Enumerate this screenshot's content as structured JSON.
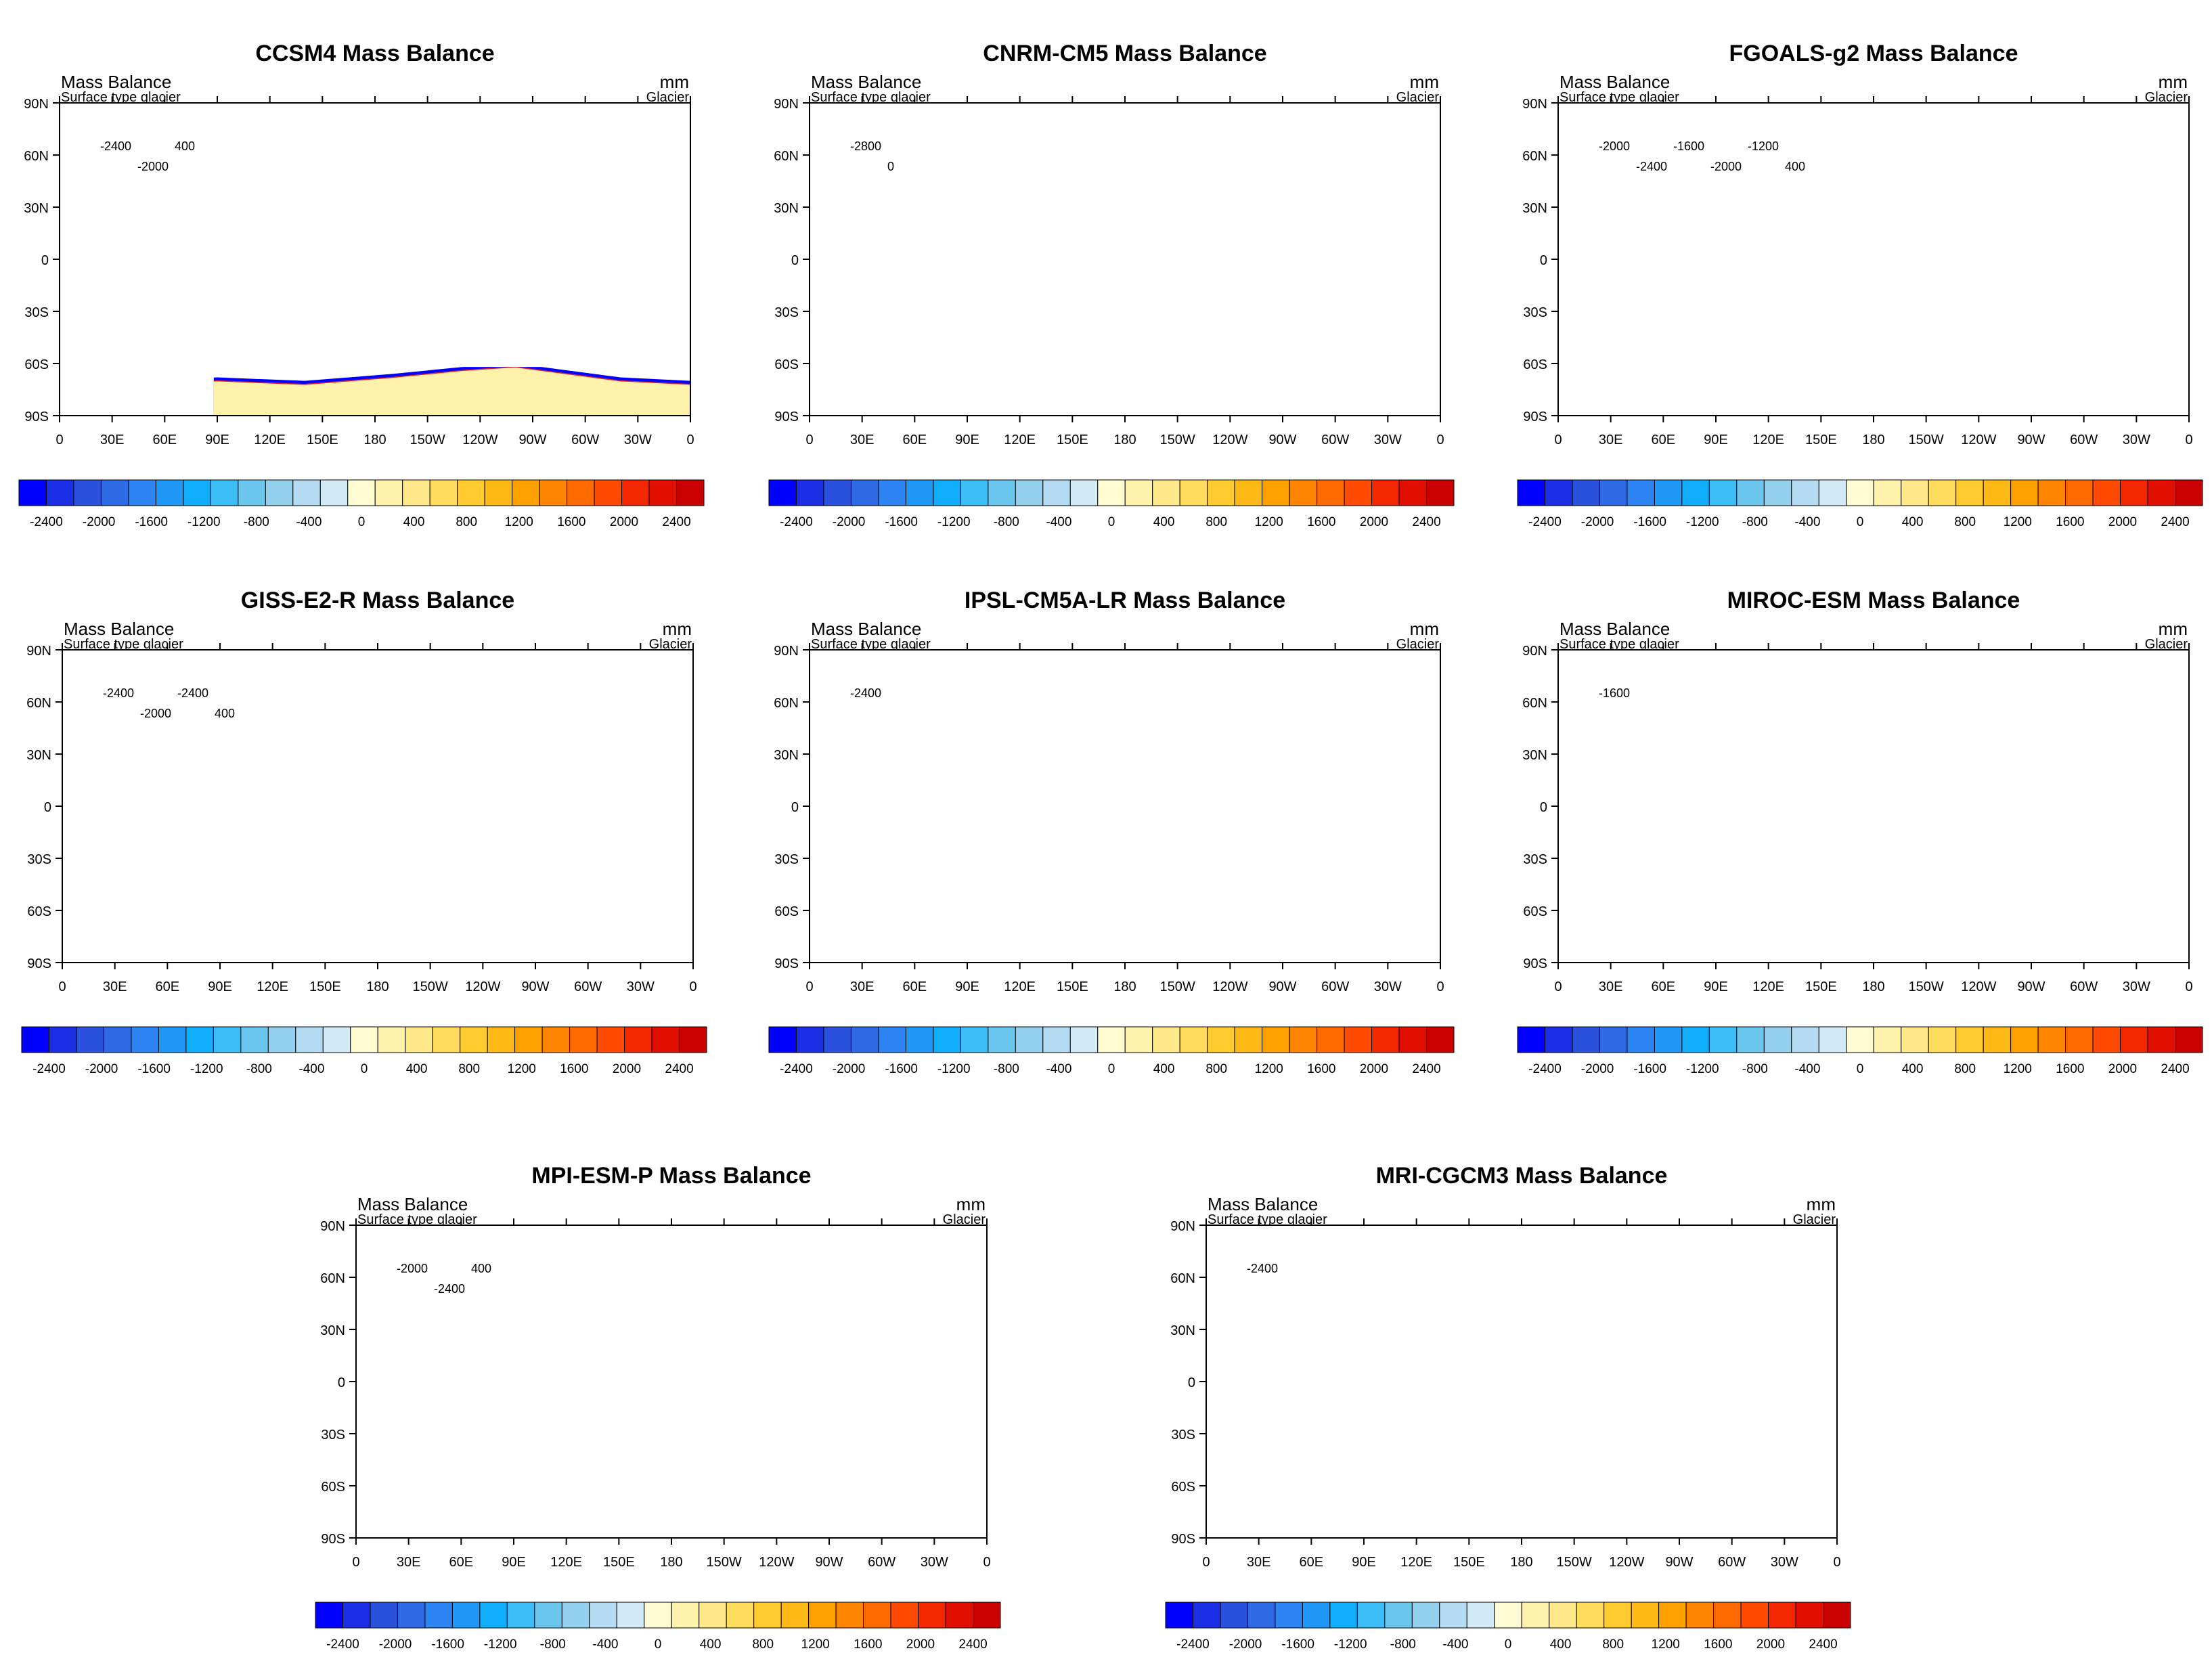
{
  "shared": {
    "variable_label": "Mass Balance",
    "subtitle": "Surface type glacier",
    "units": "mm",
    "units_sub": "Glacier",
    "lat_ticks": [
      "90N",
      "60N",
      "30N",
      "0",
      "30S",
      "60S",
      "90S"
    ],
    "lon_ticks": [
      "0",
      "30E",
      "60E",
      "90E",
      "120E",
      "150E",
      "180",
      "150W",
      "120W",
      "90W",
      "60W",
      "30W",
      "0"
    ],
    "colorbar_labels": [
      "-2400",
      "-2000",
      "-1600",
      "-1200",
      "-800",
      "-400",
      "0",
      "400",
      "800",
      "1200",
      "1600",
      "2000",
      "2400"
    ],
    "colorbar_colors": [
      "#0000ff",
      "#1a2fe6",
      "#2a52dc",
      "#2f6ae6",
      "#2d84f2",
      "#1f98f8",
      "#10aefc",
      "#3cbdf5",
      "#6cc7ef",
      "#92d0ee",
      "#b4dbf1",
      "#d3ebf7",
      "#fffbd3",
      "#fff3ab",
      "#ffe98a",
      "#ffdc5c",
      "#ffcb2e",
      "#ffb916",
      "#ffa100",
      "#ff8500",
      "#ff6a00",
      "#ff4a00",
      "#f42800",
      "#e00f00",
      "#c80000"
    ],
    "land_color": "#0000ff",
    "ocean_color": "#ffffff",
    "contour_color": "#e02020"
  },
  "panels": [
    {
      "title": "CCSM4 Mass Balance",
      "contour_labels": [
        "-2400",
        "-2000",
        "400"
      ]
    },
    {
      "title": "CNRM-CM5 Mass Balance",
      "contour_labels": [
        "-2800",
        "0"
      ]
    },
    {
      "title": "FGOALS-g2 Mass Balance",
      "contour_labels": [
        "-2000",
        "-2400",
        "-1600",
        "-2000",
        "-1200",
        "400"
      ]
    },
    {
      "title": "GISS-E2-R Mass Balance",
      "contour_labels": [
        "-2400",
        "-2000",
        "-2400",
        "400"
      ]
    },
    {
      "title": "IPSL-CM5A-LR Mass Balance",
      "contour_labels": [
        "-2400"
      ]
    },
    {
      "title": "MIROC-ESM Mass Balance",
      "contour_labels": [
        "-1600"
      ]
    },
    {
      "title": "MPI-ESM-P Mass Balance",
      "contour_labels": [
        "-2000",
        "-2400",
        "400"
      ]
    },
    {
      "title": "MRI-CGCM3 Mass Balance",
      "contour_labels": [
        "-2400"
      ]
    }
  ]
}
